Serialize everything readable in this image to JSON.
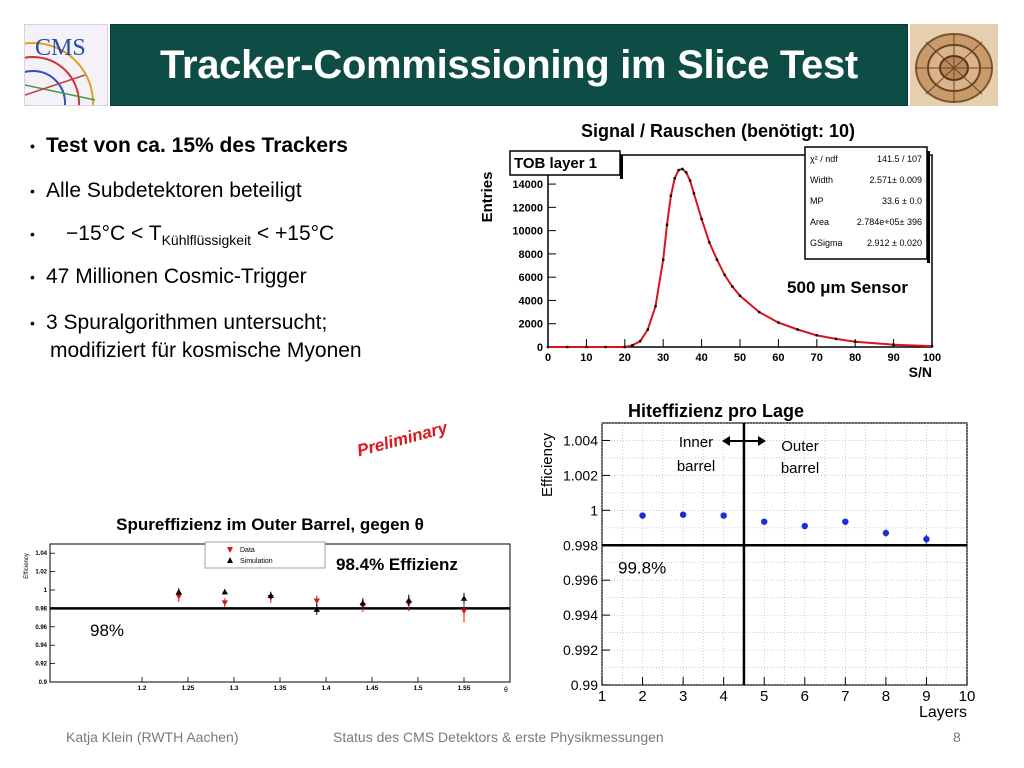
{
  "slide": {
    "title": "Tracker-Commissioning im Slice Test",
    "logo_text": "CMS",
    "bullets": [
      "Test von ca. 15% des Trackers",
      "Alle Subdetektoren beteiligt",
      "−15°C < T",
      "47 Millionen Cosmic-Trigger",
      "3 Spuralgorithmen untersucht;",
      "modifiziert für kosmische Myonen"
    ],
    "temp_subscript": "Kühlflüssigkeit",
    "temp_suffix": " < +15°C",
    "preliminary": "Preliminary",
    "footer": {
      "author": "Katja Klein (RWTH Aachen)",
      "talk": "Status des CMS Detektors & erste Physikmessungen",
      "page": "8"
    },
    "colors": {
      "title_bg": "#0d4d45",
      "data_red": "#d9141b",
      "point_blue": "#1a2fd6",
      "preliminary_red": "#e0141b"
    }
  },
  "chart_data": [
    {
      "type": "line",
      "title": "Signal / Rauschen (benötigt: 10)",
      "xlabel": "S/N",
      "ylabel": "Entries",
      "xlim": [
        0,
        100
      ],
      "ylim": [
        0,
        16500
      ],
      "xticks": [
        "0",
        "10",
        "20",
        "30",
        "40",
        "50",
        "60",
        "70",
        "80",
        "90",
        "100"
      ],
      "yticks": [
        "0",
        "2000",
        "4000",
        "6000",
        "8000",
        "10000",
        "12000",
        "14000"
      ],
      "legend_label": "TOB layer 1",
      "annotation": "500 μm Sensor",
      "stats": [
        {
          "label": "χ² / ndf",
          "value": "141.5 / 107"
        },
        {
          "label": "Width",
          "value": "2.571± 0.009"
        },
        {
          "label": "MP",
          "value": "33.6 ± 0.0"
        },
        {
          "label": "Area",
          "value": "2.784e+05± 396"
        },
        {
          "label": "GSigma",
          "value": "2.912 ± 0.020"
        }
      ],
      "series": [
        {
          "name": "data",
          "x": [
            0,
            5,
            10,
            15,
            20,
            22,
            24,
            26,
            28,
            30,
            31,
            32,
            33,
            34,
            35,
            36,
            37,
            38,
            40,
            42,
            44,
            46,
            48,
            50,
            55,
            60,
            65,
            70,
            75,
            80,
            90,
            100
          ],
          "y": [
            0,
            0,
            0,
            0,
            0,
            150,
            500,
            1500,
            3500,
            7500,
            10500,
            13000,
            14500,
            15200,
            15300,
            15000,
            14300,
            13200,
            11000,
            9000,
            7500,
            6200,
            5200,
            4400,
            3000,
            2100,
            1500,
            1000,
            700,
            450,
            200,
            80
          ]
        }
      ]
    },
    {
      "type": "scatter",
      "title": "Hiteffizienz pro Lage",
      "xlabel": "Layers",
      "ylabel": "Efficiency",
      "xlim": [
        1,
        10
      ],
      "ylim": [
        0.99,
        1.005
      ],
      "xticks": [
        "1",
        "2",
        "3",
        "4",
        "5",
        "6",
        "7",
        "8",
        "9",
        "10"
      ],
      "yticks": [
        "0.99",
        "0.992",
        "0.994",
        "0.996",
        "0.998",
        "1",
        "1.002",
        "1.004"
      ],
      "reference_line": 0.998,
      "reference_label": "99.8%",
      "divider_x": 4.5,
      "region_left": [
        "Inner",
        "barrel"
      ],
      "region_right": [
        "Outer",
        "barrel"
      ],
      "series": [
        {
          "name": "layers",
          "x": [
            2,
            3,
            4,
            5,
            6,
            7,
            8,
            9
          ],
          "y": [
            0.9997,
            0.99975,
            0.9997,
            0.99935,
            0.9991,
            0.99935,
            0.9987,
            0.99835
          ],
          "err": [
            0.0001,
            0.0001,
            0.0001,
            0.0001,
            0.00015,
            0.00015,
            0.0002,
            0.00025
          ]
        }
      ]
    },
    {
      "type": "scatter",
      "title": "Spureffizienz im Outer Barrel, gegen θ",
      "xlabel": "θ",
      "ylabel": "Efficiency",
      "xlim": [
        1.1,
        1.6
      ],
      "ylim": [
        0.9,
        1.05
      ],
      "xticks": [
        "1.2",
        "1.25",
        "1.3",
        "1.35",
        "1.4",
        "1.45",
        "1.5",
        "1.55"
      ],
      "yticks": [
        "0.9",
        "0.92",
        "0.94",
        "0.96",
        "0.98",
        "1",
        "1.02",
        "1.04"
      ],
      "reference_line": 0.98,
      "reference_label": "98%",
      "annotation": "98.4% Effizienz",
      "legend": [
        "Data",
        "Simulation"
      ],
      "series": [
        {
          "name": "Data",
          "x": [
            1.24,
            1.29,
            1.34,
            1.39,
            1.44,
            1.49,
            1.55
          ],
          "y": [
            0.993,
            0.986,
            0.992,
            0.988,
            0.983,
            0.985,
            0.977
          ],
          "err": [
            0.006,
            0.005,
            0.006,
            0.006,
            0.007,
            0.008,
            0.012
          ]
        },
        {
          "name": "Simulation",
          "x": [
            1.24,
            1.29,
            1.34,
            1.39,
            1.44,
            1.49,
            1.55
          ],
          "y": [
            0.998,
            0.998,
            0.994,
            0.979,
            0.986,
            0.989,
            0.991
          ],
          "err": [
            0.004,
            0.003,
            0.004,
            0.006,
            0.005,
            0.006,
            0.006
          ]
        }
      ]
    }
  ]
}
